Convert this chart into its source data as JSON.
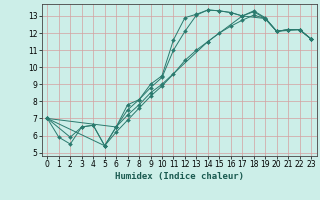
{
  "title": "",
  "xlabel": "Humidex (Indice chaleur)",
  "bg_color": "#cceee8",
  "grid_color": "#d4a0a0",
  "line_color": "#2a7a6e",
  "xlim": [
    -0.5,
    23.5
  ],
  "ylim": [
    4.8,
    13.7
  ],
  "yticks": [
    5,
    6,
    7,
    8,
    9,
    10,
    11,
    12,
    13
  ],
  "xticks": [
    0,
    1,
    2,
    3,
    4,
    5,
    6,
    7,
    8,
    9,
    10,
    11,
    12,
    13,
    14,
    15,
    16,
    17,
    18,
    19,
    20,
    21,
    22,
    23
  ],
  "lines": [
    {
      "x": [
        0,
        1,
        2,
        3,
        4,
        5,
        6,
        7,
        8,
        9,
        10,
        11,
        12,
        13,
        14,
        15,
        16,
        17,
        18,
        19,
        20,
        21,
        22,
        23
      ],
      "y": [
        7.0,
        5.9,
        5.5,
        6.5,
        6.6,
        5.4,
        6.5,
        7.8,
        8.1,
        9.0,
        9.5,
        11.6,
        12.9,
        13.1,
        13.35,
        13.3,
        13.2,
        13.0,
        13.3,
        12.9,
        12.1,
        12.2,
        12.2,
        11.65
      ]
    },
    {
      "x": [
        0,
        2,
        3,
        4,
        5,
        6,
        7,
        8,
        9,
        10,
        11,
        12,
        13,
        14,
        15,
        16,
        17,
        18,
        19,
        20,
        21,
        22,
        23
      ],
      "y": [
        7.0,
        5.9,
        6.5,
        6.6,
        5.4,
        6.5,
        7.5,
        8.1,
        8.8,
        9.4,
        11.0,
        12.1,
        13.05,
        13.35,
        13.3,
        13.2,
        13.0,
        13.25,
        12.85,
        12.1,
        12.2,
        12.2,
        11.65
      ]
    },
    {
      "x": [
        0,
        6,
        7,
        8,
        9,
        10,
        14,
        17,
        19,
        20,
        21,
        22,
        23
      ],
      "y": [
        7.0,
        6.5,
        7.2,
        7.8,
        8.5,
        9.0,
        11.5,
        13.0,
        12.85,
        12.1,
        12.15,
        12.2,
        11.65
      ]
    },
    {
      "x": [
        0,
        5,
        6,
        7,
        8,
        9,
        10,
        11,
        12,
        13,
        14,
        15,
        16,
        17,
        18,
        19,
        20,
        21,
        22,
        23
      ],
      "y": [
        7.0,
        5.4,
        6.2,
        6.9,
        7.6,
        8.3,
        8.9,
        9.6,
        10.4,
        11.0,
        11.5,
        12.0,
        12.4,
        12.75,
        13.05,
        12.85,
        12.1,
        12.2,
        12.2,
        11.65
      ]
    }
  ]
}
